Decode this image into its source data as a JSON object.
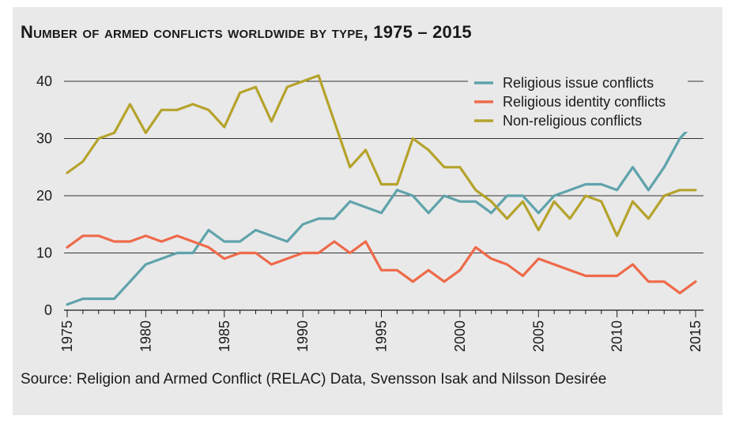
{
  "chart_data": {
    "type": "line",
    "title": "Number of armed conflicts worldwide by type, 1975 – 2015",
    "source": "Source: Religion and Armed Conflict (RELAC) Data, Svensson Isak and Nilsson Desirée",
    "xlabel": "",
    "ylabel": "",
    "xlim": [
      1975,
      2015
    ],
    "ylim": [
      0,
      40
    ],
    "yticks": [
      0,
      10,
      20,
      30,
      40
    ],
    "xticks": [
      1975,
      1980,
      1985,
      1990,
      1995,
      2000,
      2005,
      2010,
      2015
    ],
    "grid": "horizontal",
    "legend_position": "top-right",
    "x": [
      1975,
      1976,
      1977,
      1978,
      1979,
      1980,
      1981,
      1982,
      1983,
      1984,
      1985,
      1986,
      1987,
      1988,
      1989,
      1990,
      1991,
      1992,
      1993,
      1994,
      1995,
      1996,
      1997,
      1998,
      1999,
      2000,
      2001,
      2002,
      2003,
      2004,
      2005,
      2006,
      2007,
      2008,
      2009,
      2010,
      2011,
      2012,
      2013,
      2014,
      2015
    ],
    "series": [
      {
        "name": "Religious issue conflicts",
        "color": "#5fa3ab",
        "values": [
          1,
          2,
          2,
          2,
          5,
          8,
          9,
          10,
          10,
          14,
          12,
          12,
          14,
          13,
          12,
          15,
          16,
          16,
          19,
          18,
          17,
          21,
          20,
          17,
          20,
          19,
          19,
          17,
          20,
          20,
          17,
          20,
          21,
          22,
          22,
          21,
          25,
          21,
          25,
          30,
          33
        ]
      },
      {
        "name": "Religious identity conflicts",
        "color": "#ee6a4a",
        "values": [
          11,
          13,
          13,
          12,
          12,
          13,
          12,
          13,
          12,
          11,
          9,
          10,
          10,
          8,
          9,
          10,
          10,
          12,
          10,
          12,
          7,
          7,
          5,
          7,
          5,
          7,
          11,
          9,
          8,
          6,
          9,
          8,
          7,
          6,
          6,
          6,
          8,
          5,
          5,
          3,
          5
        ]
      },
      {
        "name": "Non-religious conflicts",
        "color": "#b5a32c",
        "values": [
          24,
          26,
          30,
          31,
          36,
          31,
          35,
          35,
          36,
          35,
          32,
          38,
          39,
          33,
          39,
          40,
          41,
          33,
          25,
          28,
          22,
          22,
          30,
          28,
          25,
          25,
          21,
          19,
          16,
          19,
          14,
          19,
          16,
          20,
          19,
          13,
          19,
          16,
          20,
          21,
          21
        ]
      }
    ]
  }
}
